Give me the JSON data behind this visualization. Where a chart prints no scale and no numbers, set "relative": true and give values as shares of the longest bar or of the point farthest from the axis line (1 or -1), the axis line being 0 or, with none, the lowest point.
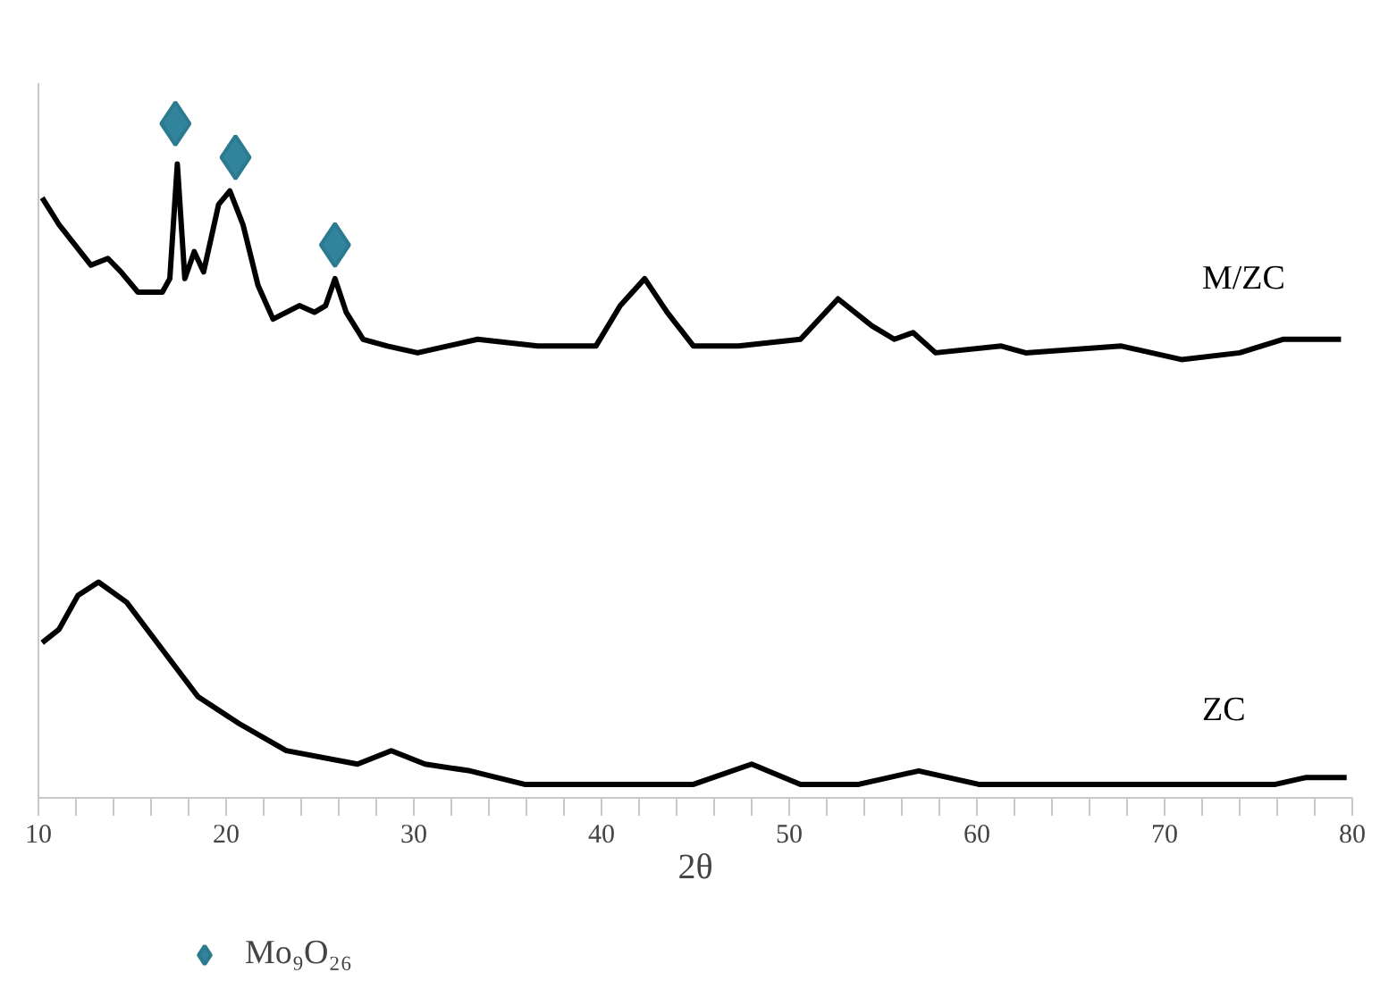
{
  "chart_data": {
    "type": "line",
    "relative": true,
    "xlabel": "2θ",
    "xlim": [
      10,
      80
    ],
    "xticks": [
      10,
      {
        "value": 12,
        "label": null
      },
      {
        "value": 14,
        "label": null
      },
      {
        "value": 16,
        "label": null
      },
      {
        "value": 18,
        "label": null
      },
      20,
      {
        "value": 22,
        "label": null
      },
      {
        "value": 24,
        "label": null
      },
      {
        "value": 26,
        "label": null
      },
      {
        "value": 28,
        "label": null
      },
      30,
      {
        "value": 32,
        "label": null
      },
      {
        "value": 34,
        "label": null
      },
      {
        "value": 36,
        "label": null
      },
      {
        "value": 38,
        "label": null
      },
      40,
      {
        "value": 42,
        "label": null
      },
      {
        "value": 44,
        "label": null
      },
      {
        "value": 46,
        "label": null
      },
      {
        "value": 48,
        "label": null
      },
      50,
      {
        "value": 52,
        "label": null
      },
      {
        "value": 54,
        "label": null
      },
      {
        "value": 56,
        "label": null
      },
      {
        "value": 58,
        "label": null
      },
      60,
      {
        "value": 62,
        "label": null
      },
      {
        "value": 64,
        "label": null
      },
      {
        "value": 66,
        "label": null
      },
      {
        "value": 68,
        "label": null
      },
      70,
      {
        "value": 72,
        "label": null
      },
      {
        "value": 74,
        "label": null
      },
      {
        "value": 76,
        "label": null
      },
      {
        "value": 78,
        "label": null
      },
      80
    ],
    "grid": false,
    "legend": "bottom left",
    "tick_labels": "x",
    "series": [
      {
        "name": "M/ZC",
        "color": "#000000",
        "x": [
          10.2,
          11.1,
          12.8,
          13.7,
          14.4,
          15.3,
          16.6,
          17.0,
          17.4,
          17.8,
          18.3,
          18.8,
          19.6,
          20.2,
          20.9,
          21.7,
          22.5,
          23.9,
          24.7,
          25.3,
          25.8,
          26.4,
          27.3,
          28.6,
          30.2,
          33.4,
          36.6,
          39.7,
          41.0,
          42.3,
          43.5,
          44.9,
          47.3,
          50.6,
          52.6,
          54.4,
          55.6,
          56.6,
          57.8,
          61.3,
          62.6,
          67.7,
          70.9,
          74.0,
          76.3,
          79.4
        ],
        "values": [
          0.89,
          0.85,
          0.79,
          0.8,
          0.78,
          0.75,
          0.75,
          0.77,
          0.94,
          0.77,
          0.81,
          0.78,
          0.88,
          0.9,
          0.85,
          0.76,
          0.71,
          0.73,
          0.72,
          0.73,
          0.77,
          0.72,
          0.68,
          0.67,
          0.66,
          0.68,
          0.67,
          0.67,
          0.73,
          0.77,
          0.72,
          0.67,
          0.67,
          0.68,
          0.74,
          0.7,
          0.68,
          0.69,
          0.66,
          0.67,
          0.66,
          0.67,
          0.65,
          0.66,
          0.68,
          0.68
        ]
      },
      {
        "name": "ZC",
        "color": "#000000",
        "x": [
          10.2,
          11.1,
          12.1,
          13.2,
          14.7,
          16.6,
          18.5,
          20.7,
          23.2,
          27.0,
          28.8,
          30.6,
          33.0,
          35.9,
          44.9,
          48.0,
          50.6,
          53.7,
          56.9,
          60.1,
          66.4,
          75.9,
          77.5,
          79.7
        ],
        "values": [
          0.23,
          0.25,
          0.3,
          0.32,
          0.29,
          0.22,
          0.15,
          0.11,
          0.07,
          0.05,
          0.07,
          0.05,
          0.04,
          0.02,
          0.02,
          0.05,
          0.02,
          0.02,
          0.04,
          0.02,
          0.02,
          0.02,
          0.03,
          0.03
        ]
      },
      {
        "name": "Mo₉O₂₆",
        "type": "scatter",
        "marker": "diamond",
        "color": "#31849b",
        "x": [
          17.3,
          20.5,
          25.8
        ],
        "values": [
          1.0,
          0.95,
          0.82
        ]
      }
    ]
  }
}
